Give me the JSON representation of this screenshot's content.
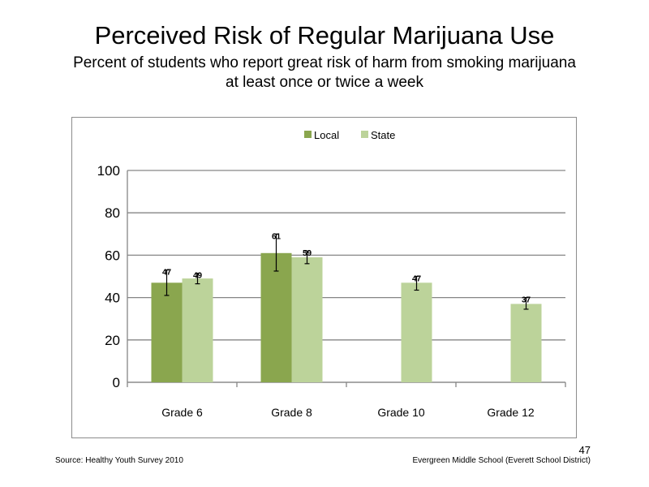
{
  "title": "Perceived  Risk of Regular  Marijuana  Use",
  "subtitle": "Percent of students who report great risk of harm  from smoking marijuana  at least once or twice a week",
  "footer": {
    "source": "Source: Healthy  Youth Survey 2010",
    "school": "Evergreen Middle  School  (Everett School District)",
    "page_number": "47"
  },
  "colors": {
    "local": "#8aa64e",
    "state": "#bcd39a"
  },
  "chart_data": {
    "type": "bar",
    "categories": [
      "Grade 6",
      "Grade 8",
      "Grade 10",
      "Grade 12"
    ],
    "series": [
      {
        "name": "Local",
        "values": [
          47,
          61,
          null,
          null
        ],
        "labels": [
          "47",
          "61",
          "",
          ""
        ],
        "error_low": [
          41,
          52.5,
          null,
          null
        ],
        "error_high": [
          53,
          70,
          null,
          null
        ]
      },
      {
        "name": "State",
        "values": [
          49,
          59,
          47,
          37
        ],
        "labels": [
          "49",
          "59",
          "47",
          "37"
        ],
        "error_low": [
          46.5,
          56,
          43.5,
          34.5
        ],
        "error_high": [
          51.5,
          62,
          50,
          40
        ]
      }
    ],
    "ylim": [
      0,
      100
    ],
    "yticks": [
      "0",
      "20",
      "40",
      "60",
      "80",
      "100"
    ],
    "grid": true,
    "legend_position": "top-center"
  }
}
